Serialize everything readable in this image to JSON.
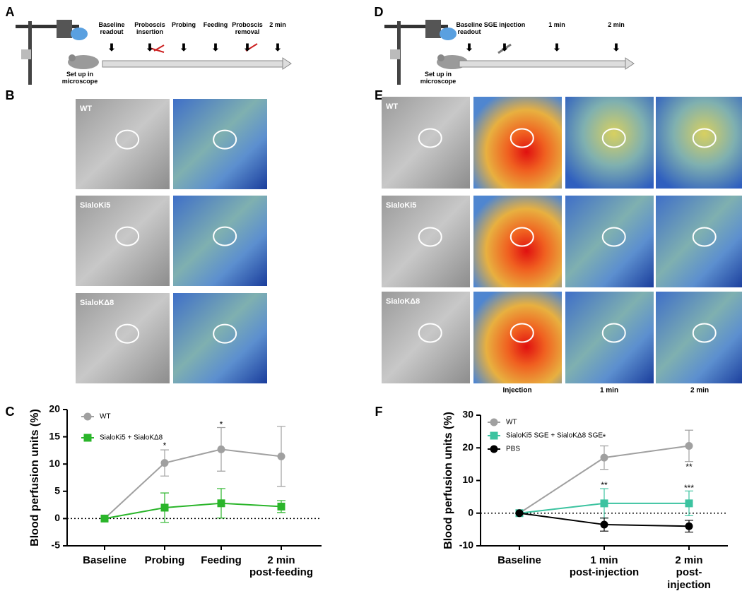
{
  "panel_labels": [
    "A",
    "B",
    "C",
    "D",
    "E",
    "F"
  ],
  "timeline_a": {
    "steps": [
      "Baseline\nreadout",
      "Proboscis\ninsertion",
      "Probing",
      "Feeding",
      "Proboscis\nremoval",
      "2 min"
    ],
    "setup": "Set up in\nmicroscope"
  },
  "timeline_d": {
    "steps": [
      "Baseline\nreadout",
      "SGE injection",
      "1 min",
      "2 min"
    ],
    "setup": "Set up in\nmicroscope"
  },
  "images_b": {
    "rows": [
      "WT",
      "SialoKi5",
      "SialoKΔ8"
    ]
  },
  "images_e": {
    "rows": [
      "WT",
      "SialoKi5",
      "SialoKΔ8"
    ],
    "columns": [
      "Injection",
      "1 min",
      "2 min"
    ]
  },
  "chart_data": [
    {
      "type": "line",
      "ylabel": "Blood perfusion units (%)",
      "categories": [
        "Baseline",
        "Probing",
        "Feeding",
        "2 min\npost-feeding"
      ],
      "ylim": [
        -5,
        20
      ],
      "yticks": [
        -5,
        0,
        5,
        10,
        15,
        20
      ],
      "zero_line": true,
      "series": [
        {
          "name": "WT",
          "color": "#a0a0a0",
          "marker": "circle",
          "values": [
            0,
            10.2,
            12.7,
            11.4
          ],
          "errors": [
            0,
            2.4,
            4.0,
            5.5
          ]
        },
        {
          "name": "SialoKi5 + SialoKΔ8",
          "color": "#2ab52a",
          "marker": "square",
          "values": [
            0,
            2.0,
            2.8,
            2.2
          ],
          "errors": [
            0,
            2.7,
            2.7,
            1.1
          ]
        }
      ],
      "annotations": [
        {
          "text": "*"
        },
        {
          "text": "*"
        }
      ]
    },
    {
      "type": "line",
      "ylabel": "Blood perfusion units (%)",
      "categories": [
        "Baseline",
        "1 min\npost-injection",
        "2 min\npost-injection"
      ],
      "ylim": [
        -10,
        30
      ],
      "yticks": [
        -10,
        0,
        10,
        20,
        30
      ],
      "zero_line": true,
      "series": [
        {
          "name": "WT",
          "color": "#a0a0a0",
          "marker": "circle",
          "values": [
            0,
            17.0,
            20.6
          ],
          "errors": [
            0,
            3.6,
            4.8
          ]
        },
        {
          "name": "SialoKi5 SGE + SialoKΔ8 SGE",
          "color": "#3cc3a0",
          "marker": "square",
          "values": [
            0,
            3.0,
            3.0
          ],
          "errors": [
            0,
            4.5,
            3.8
          ]
        },
        {
          "name": "PBS",
          "color": "#000000",
          "marker": "circle",
          "values": [
            0,
            -3.5,
            -4.0
          ],
          "errors": [
            0,
            2.0,
            1.8
          ]
        }
      ],
      "annotations": [
        {
          "text": "*"
        },
        {
          "text": "**"
        },
        {
          "text": "**"
        },
        {
          "text": "***"
        }
      ]
    }
  ]
}
